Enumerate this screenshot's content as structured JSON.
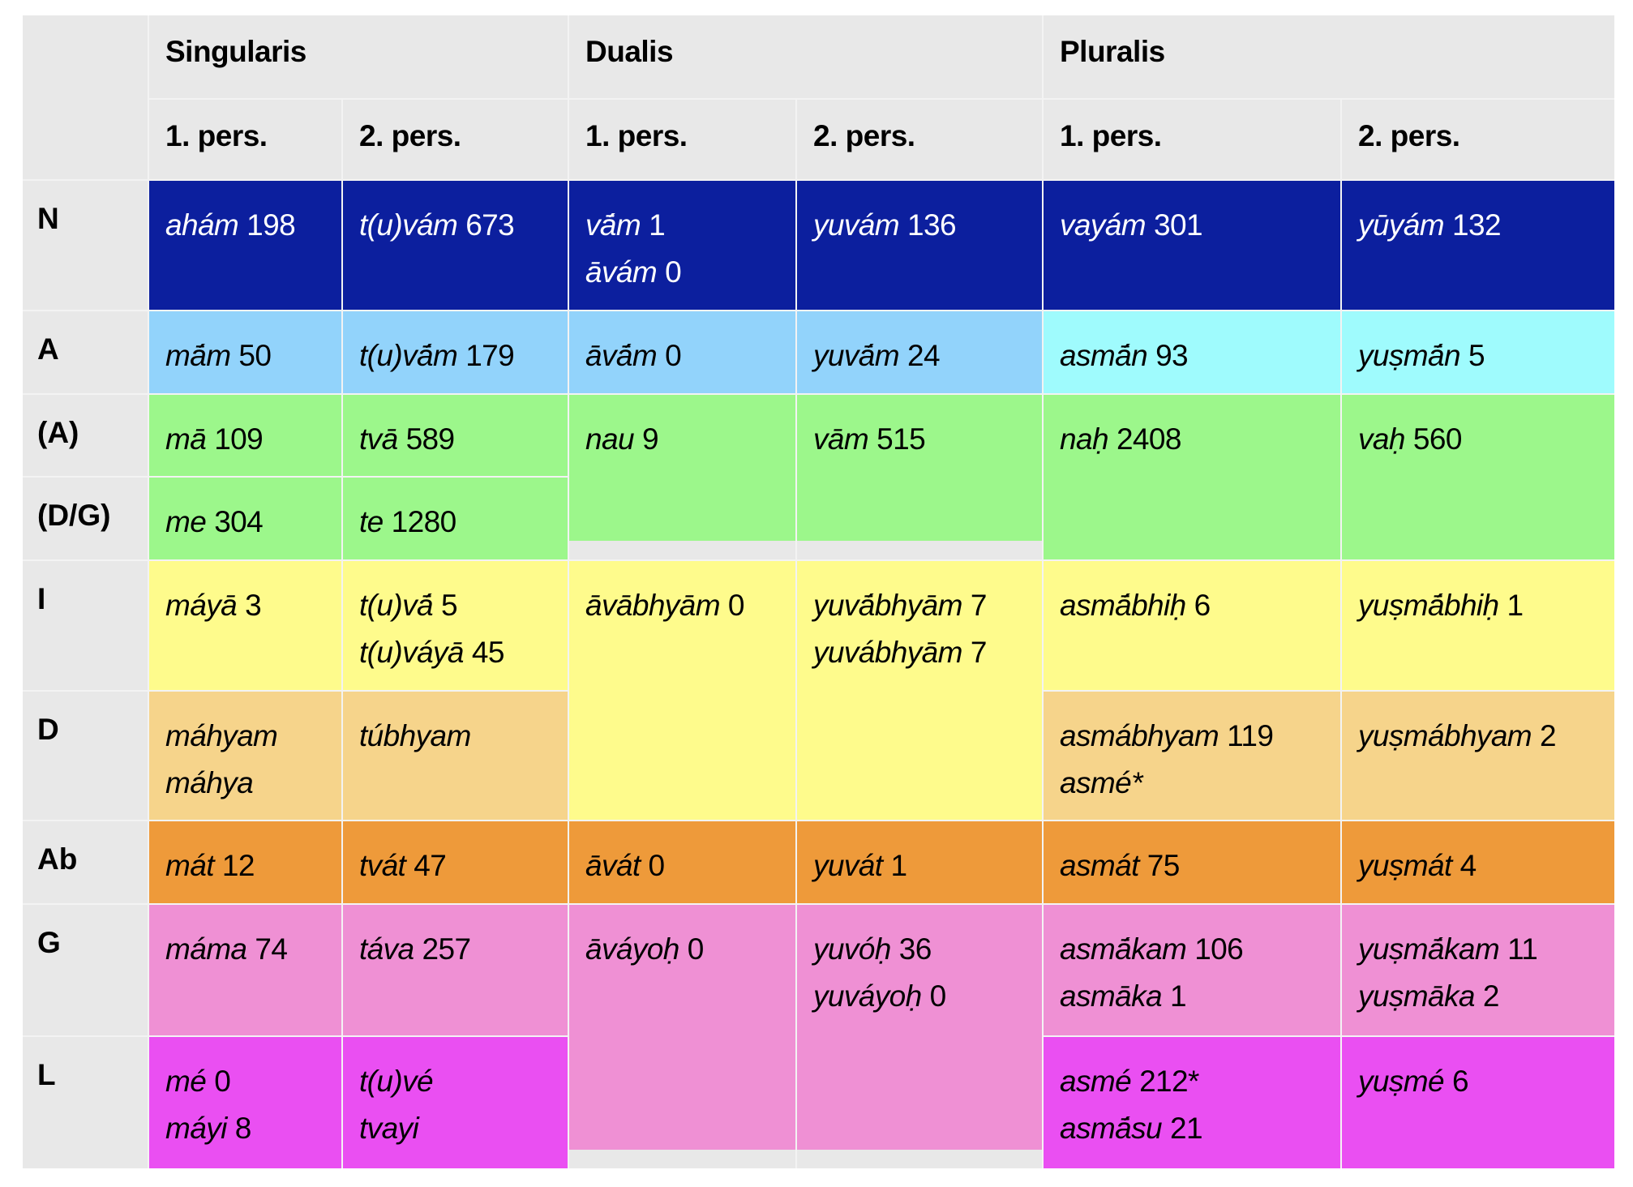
{
  "header": {
    "groups": [
      "Singularis",
      "Dualis",
      "Pluralis"
    ],
    "persons": [
      "1. pers.",
      "2. pers.",
      "1. pers.",
      "2. pers.",
      "1. pers.",
      "2. pers."
    ]
  },
  "colors": {
    "navy": "#0c1f9e",
    "lightblue": "#92d3fb",
    "cyan": "#9ffbfd",
    "green": "#9cf78b",
    "yellow": "#fefb8c",
    "tan": "#f6d48b",
    "orange": "#ee9a3a",
    "pink": "#ef90d4",
    "magenta": "#ea4ff2"
  },
  "rows": [
    {
      "label": "N",
      "cells": [
        [
          [
            "ahám",
            "198"
          ]
        ],
        [
          [
            "t(u)vám",
            "673"
          ]
        ],
        [
          [
            "vā́m",
            "1"
          ],
          [
            "āvám",
            "0"
          ]
        ],
        [
          [
            "yuvám",
            "136"
          ]
        ],
        [
          [
            "vayám",
            "301"
          ]
        ],
        [
          [
            "yūyám",
            "132"
          ]
        ]
      ]
    },
    {
      "label": "A",
      "cells": [
        [
          [
            "mā́m",
            "50"
          ]
        ],
        [
          [
            "t(u)vā́m",
            "179"
          ]
        ],
        [
          [
            "āvā́m",
            "0"
          ]
        ],
        [
          [
            "yuvā́m",
            "24"
          ]
        ],
        [
          [
            "asmā́n",
            "93"
          ]
        ],
        [
          [
            "yuṣmā́n",
            "5"
          ]
        ]
      ]
    },
    {
      "label": "(A)",
      "cells": [
        [
          [
            "mā",
            "109"
          ]
        ],
        [
          [
            "tvā",
            "589"
          ]
        ],
        [
          [
            "nau",
            "9"
          ]
        ],
        [
          [
            "vām",
            "515"
          ]
        ],
        [
          [
            "naḥ",
            "2408"
          ]
        ],
        [
          [
            "vaḥ",
            "560"
          ]
        ]
      ]
    },
    {
      "label": "(D/G)",
      "cells": [
        [
          [
            "me",
            "304"
          ]
        ],
        [
          [
            "te",
            "1280"
          ]
        ]
      ]
    },
    {
      "label": "I",
      "cells": [
        [
          [
            "máyā",
            "3"
          ]
        ],
        [
          [
            "t(u)vā́",
            "5"
          ],
          [
            "t(u)váyā",
            "45"
          ]
        ],
        [
          [
            "āvābhyām",
            "0"
          ]
        ],
        [
          [
            "yuvā́bhyām",
            "7"
          ],
          [
            "yuvábhyām",
            "7"
          ]
        ],
        [
          [
            "asmā́bhiḥ",
            "6"
          ]
        ],
        [
          [
            "yuṣmā́bhiḥ",
            "1"
          ]
        ]
      ]
    },
    {
      "label": "D",
      "cells": [
        [
          [
            "máhyam",
            ""
          ],
          [
            "máhya",
            ""
          ]
        ],
        [
          [
            "túbhyam",
            ""
          ]
        ],
        [
          [
            "asmábhyam",
            "119"
          ],
          [
            "asmé*",
            ""
          ]
        ],
        [
          [
            "yuṣmábhyam",
            "2"
          ]
        ]
      ]
    },
    {
      "label": "Ab",
      "cells": [
        [
          [
            "mát",
            "12"
          ]
        ],
        [
          [
            "tvát",
            "47"
          ]
        ],
        [
          [
            "āvát",
            "0"
          ]
        ],
        [
          [
            "yuvát",
            "1"
          ]
        ],
        [
          [
            "asmát",
            "75"
          ]
        ],
        [
          [
            "yuṣmát",
            "4"
          ]
        ]
      ]
    },
    {
      "label": "G",
      "cells": [
        [
          [
            "máma",
            "74"
          ]
        ],
        [
          [
            "táva",
            "257"
          ]
        ],
        [
          [
            "āváyoḥ",
            "0"
          ]
        ],
        [
          [
            "yuvóḥ",
            "36"
          ],
          [
            "yuváyoḥ",
            "0"
          ]
        ],
        [
          [
            "asmā́kam",
            "106"
          ],
          [
            "asmāka",
            "1"
          ]
        ],
        [
          [
            "yuṣmā́kam",
            "11"
          ],
          [
            "yuṣmāka",
            "2"
          ]
        ]
      ]
    },
    {
      "label": "L",
      "cells": [
        [
          [
            "mé",
            "0"
          ],
          [
            "máyi",
            "8"
          ]
        ],
        [
          [
            "t(u)vé",
            ""
          ],
          [
            "tvayi",
            ""
          ]
        ],
        [
          [
            "asmé",
            "212*"
          ],
          [
            "asmā́su",
            "21"
          ]
        ],
        [
          [
            "yuṣmé",
            "6"
          ]
        ]
      ]
    }
  ]
}
